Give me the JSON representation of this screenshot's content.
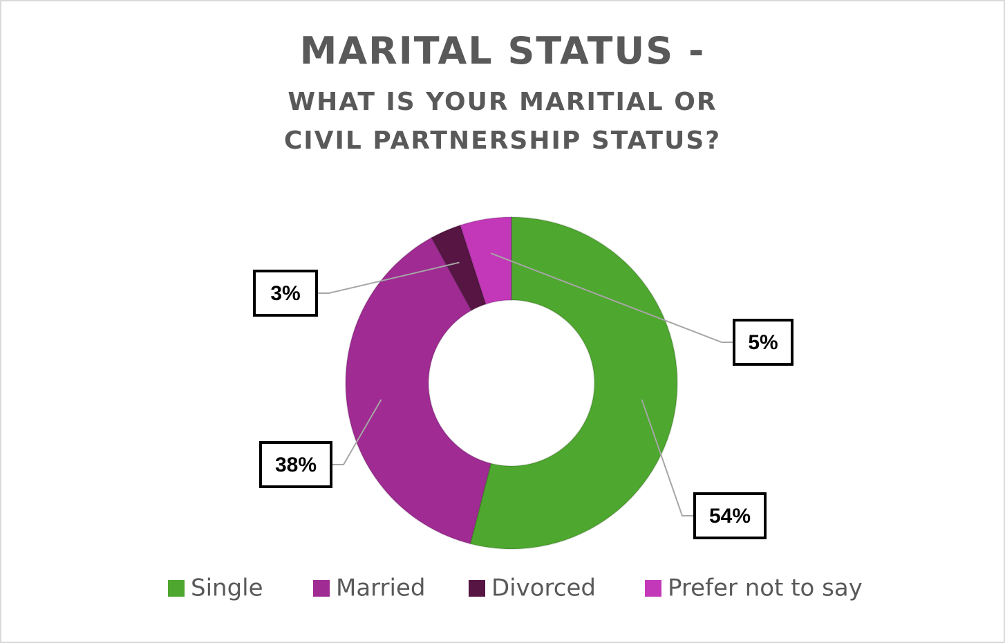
{
  "chart_data": {
    "type": "donut",
    "title": "MARITAL STATUS -",
    "subtitle": "WHAT IS YOUR MARITIAL OR CIVIL PARTNERSHIP STATUS?",
    "categories": [
      "Single",
      "Married",
      "Divorced",
      "Prefer not to say"
    ],
    "values": [
      54,
      38,
      3,
      5
    ],
    "value_labels": [
      "54%",
      "38%",
      "3%",
      "5%"
    ],
    "colors": [
      "#4ea72e",
      "#a02b93",
      "#561543",
      "#c238b8"
    ],
    "legend": "bottom"
  }
}
